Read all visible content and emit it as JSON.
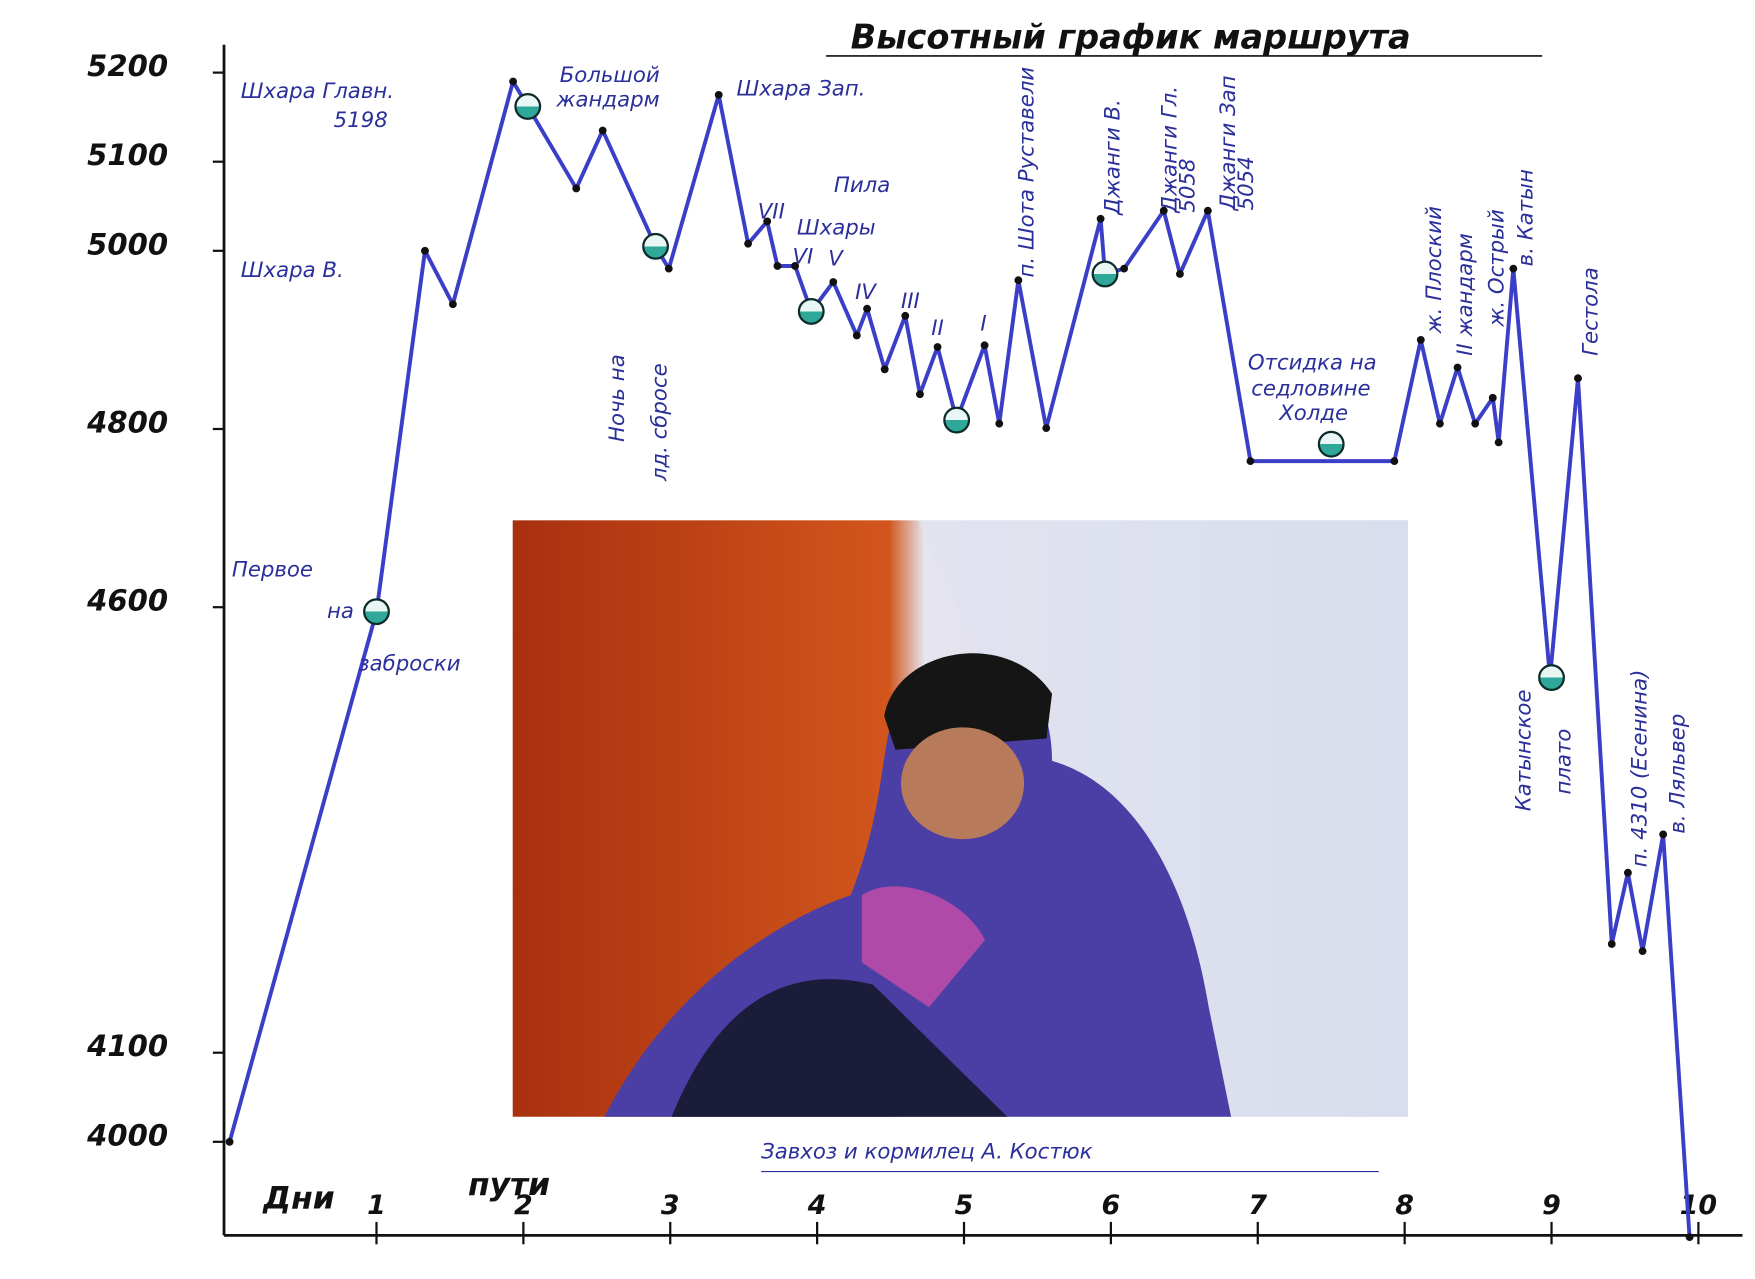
{
  "chart_data": {
    "type": "line",
    "title": "Высотный график маршрута",
    "xlabel": [
      "Дни",
      "пути"
    ],
    "x": [
      0,
      1.0,
      1.33,
      1.52,
      1.93,
      2.03,
      2.36,
      2.54,
      2.9,
      2.99,
      3.33,
      3.53,
      3.66,
      3.73,
      3.85,
      3.96,
      4.11,
      4.27,
      4.34,
      4.46,
      4.6,
      4.7,
      4.82,
      4.95,
      5.14,
      5.24,
      5.37,
      5.56,
      5.93,
      5.96,
      6.09,
      6.36,
      6.47,
      6.66,
      6.95,
      7.93,
      8.11,
      8.24,
      8.36,
      8.48,
      8.6,
      8.64,
      8.74,
      8.99,
      9.18,
      9.41,
      9.52,
      9.62,
      9.76,
      9.94
    ],
    "series": [
      {
        "color": "#3b3fc8",
        "values": [
          4000,
          4595,
          5000,
          4940,
          5190,
          5162,
          5070,
          5135,
          5005,
          4980,
          5175,
          5008,
          5033,
          4983,
          4983,
          4932,
          4965,
          4905,
          4935,
          4867,
          4927,
          4839,
          4892,
          4810,
          4894,
          4806,
          4967,
          4801,
          5036,
          4974,
          4980,
          5045,
          4974,
          5045,
          4764,
          4764,
          4900,
          4806,
          4869,
          4806,
          4835,
          4785,
          4980,
          4521,
          4857,
          4222,
          4302,
          4214,
          4345,
          3893
        ]
      }
    ],
    "camps": {
      "x": [
        1.0,
        2.03,
        2.9,
        3.96,
        4.95,
        5.96,
        7.5,
        9.0
      ],
      "values": [
        4595,
        5162,
        5005,
        4932,
        4810,
        4974,
        4783,
        4521
      ],
      "color": "#2fa89a"
    },
    "xlim": [
      0,
      10.3
    ],
    "xticks": [
      1,
      2,
      3,
      4,
      5,
      6,
      7,
      8,
      9,
      10
    ],
    "ylim": [
      3895,
      5230
    ],
    "yticks": [
      4000,
      4100,
      4600,
      4800,
      5000,
      5100,
      5200
    ],
    "annotations": [
      "Шхара Главн.",
      "5198",
      "Большой",
      "жандарм",
      "Шхара Зап.",
      "Шхара В.",
      "Пила",
      "Шхары",
      "VII",
      "VI",
      "V",
      "IV",
      "III",
      "II",
      "I",
      "п. Шота Руставели",
      "Джанги В.",
      "Джанги Гл.",
      "5058",
      "Джанги Зап",
      "5054",
      "Ночь на",
      "лд. сбросе",
      "Отсидка на",
      "седловине",
      "Холде",
      "Первое",
      "на",
      "заброски",
      "ж. Плоский",
      "II жандарм",
      "ж. Острый",
      "в. Катын",
      "Гестола",
      "Катынское",
      "плато",
      "п. 4310 (Есенина)",
      "в. Ляльвер"
    ],
    "caption": "Завхоз и кормилец А. Костюк"
  }
}
